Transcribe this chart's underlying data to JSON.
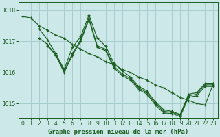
{
  "bg_color": "#cde8e8",
  "grid_color": "#a8cccc",
  "line_color": "#1a5e20",
  "marker_color": "#1a5e20",
  "title": "Graphe pression niveau de la mer (hPa)",
  "xlim": [
    -0.5,
    23.5
  ],
  "ylim": [
    1014.55,
    1018.25
  ],
  "yticks": [
    1015,
    1016,
    1017,
    1018
  ],
  "xticks": [
    0,
    1,
    2,
    3,
    4,
    5,
    6,
    7,
    8,
    9,
    10,
    11,
    12,
    13,
    14,
    15,
    16,
    17,
    18,
    19,
    20,
    21,
    22,
    23
  ],
  "series": [
    {
      "x": [
        0,
        1,
        2,
        3,
        4,
        5,
        6,
        7,
        8,
        9,
        10,
        11,
        12,
        13,
        14,
        15,
        16,
        17,
        18,
        19,
        20,
        21,
        22,
        23
      ],
      "y": [
        1017.8,
        1017.75,
        1017.5,
        1017.35,
        1017.2,
        1017.1,
        1016.9,
        1016.75,
        1016.6,
        1016.5,
        1016.35,
        1016.25,
        1016.1,
        1016.0,
        1015.85,
        1015.75,
        1015.6,
        1015.5,
        1015.35,
        1015.2,
        1015.1,
        1015.0,
        1014.95,
        1015.65
      ]
    },
    {
      "x": [
        2,
        3,
        4,
        5,
        6,
        7,
        8,
        9,
        10,
        11,
        12,
        13,
        14,
        15,
        16,
        17,
        18,
        19,
        20,
        21,
        22,
        23
      ],
      "y": [
        1017.4,
        1017.05,
        1016.6,
        1016.1,
        1016.8,
        1017.15,
        1017.85,
        1017.1,
        1016.85,
        1016.3,
        1016.05,
        1015.85,
        1015.55,
        1015.4,
        1015.05,
        1014.8,
        1014.75,
        1014.65,
        1015.3,
        1015.35,
        1015.65,
        1015.65
      ]
    },
    {
      "x": [
        2,
        3,
        4,
        5,
        6,
        7,
        8,
        9,
        10,
        11,
        12,
        13,
        14,
        15,
        16,
        17,
        18,
        19,
        20,
        21,
        22,
        23
      ],
      "y": [
        1017.1,
        1016.9,
        1016.55,
        1016.05,
        1016.6,
        1017.05,
        1017.75,
        1016.85,
        1016.75,
        1016.2,
        1015.95,
        1015.8,
        1015.5,
        1015.35,
        1015.0,
        1014.75,
        1014.72,
        1014.62,
        1015.25,
        1015.3,
        1015.6,
        1015.6
      ]
    },
    {
      "x": [
        3,
        4,
        5,
        6,
        7,
        8,
        9,
        10,
        11,
        12,
        13,
        14,
        15,
        16,
        17,
        18,
        19,
        20,
        21,
        22,
        23
      ],
      "y": [
        1016.85,
        1016.55,
        1016.0,
        1016.55,
        1017.0,
        1017.7,
        1016.8,
        1016.7,
        1016.15,
        1015.9,
        1015.75,
        1015.45,
        1015.3,
        1014.95,
        1014.7,
        1014.68,
        1014.58,
        1015.2,
        1015.25,
        1015.55,
        1015.55
      ]
    }
  ]
}
